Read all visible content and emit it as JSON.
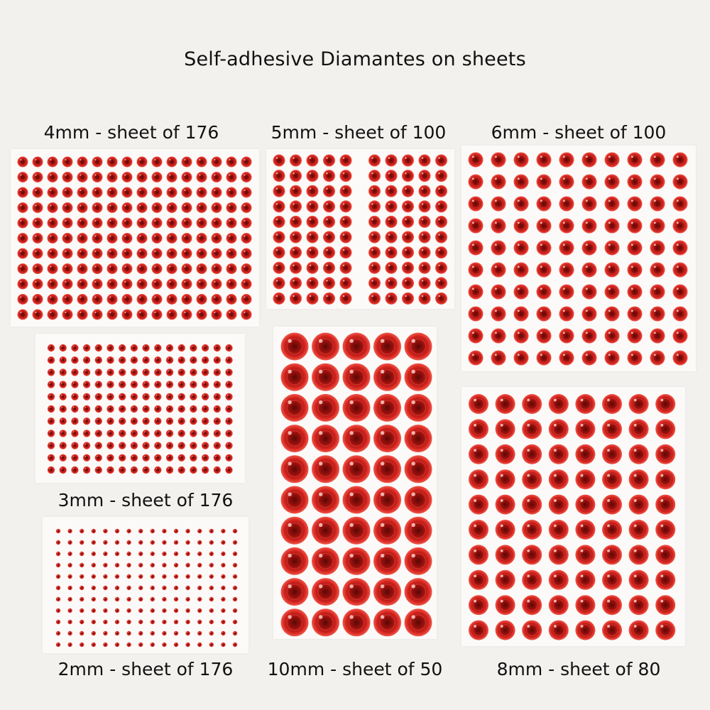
{
  "title": "Self-adhesive Diamantes on sheets",
  "colors": {
    "background": "#f3f1ee",
    "sheet": "#fbfaf8",
    "gem_light": "#f0574a",
    "gem_mid": "#d4241f",
    "gem_dark": "#5a0806"
  },
  "sheets": [
    {
      "label": "4mm - sheet of 176",
      "size": "4mm",
      "count": 176
    },
    {
      "label": "5mm - sheet of 100",
      "size": "5mm",
      "count": 100
    },
    {
      "label": "6mm - sheet of 100",
      "size": "6mm",
      "count": 100
    },
    {
      "label": "3mm - sheet of 176",
      "size": "3mm",
      "count": 176
    },
    {
      "label": "10mm - sheet of 50",
      "size": "10mm",
      "count": 50
    },
    {
      "label": "8mm - sheet of 80",
      "size": "8mm",
      "count": 80
    },
    {
      "label": "2mm - sheet of 176",
      "size": "2mm",
      "count": 176
    }
  ]
}
